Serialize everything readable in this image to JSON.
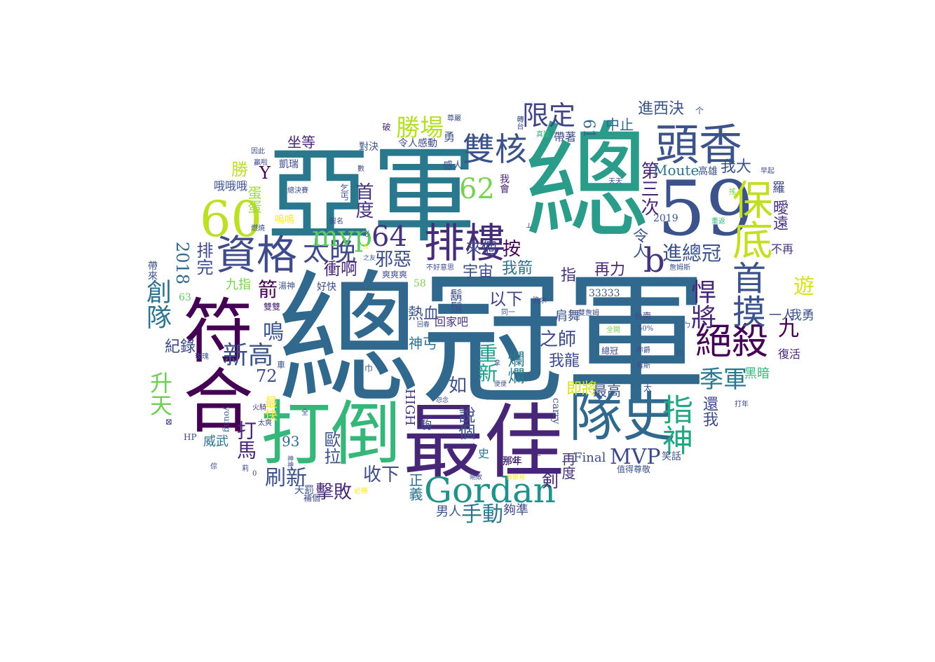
{
  "words": [
    {
      "text": "總冠軍",
      "color": "#31688e"
    },
    {
      "text": "總",
      "color": "#2a9c89"
    },
    {
      "text": "亞軍",
      "color": "#2a788e"
    },
    {
      "text": "59",
      "color": "#3b528b"
    },
    {
      "text": "最佳",
      "color": "#482677"
    },
    {
      "text": "打倒",
      "color": "#35b779"
    },
    {
      "text": "符合",
      "color": "#440154"
    },
    {
      "text": "隊史",
      "color": "#31688e"
    },
    {
      "text": "60",
      "color": "#bddf26"
    },
    {
      "text": "頭香",
      "color": "#3b528b"
    },
    {
      "text": "排樓",
      "color": "#472c7a"
    },
    {
      "text": "資格",
      "color": "#3e4a89"
    },
    {
      "text": "保底",
      "color": "#c2df23"
    },
    {
      "text": "Gordan",
      "color": "#21918c"
    },
    {
      "text": "絕殺",
      "color": "#440154"
    },
    {
      "text": "首摸",
      "color": "#3b528b"
    },
    {
      "text": "雙核",
      "color": "#3b528b"
    },
    {
      "text": "太晚",
      "color": "#3e4a89"
    },
    {
      "text": "64",
      "color": "#46337e"
    },
    {
      "text": "62",
      "color": "#7ad151"
    },
    {
      "text": "限定",
      "color": "#414487"
    },
    {
      "text": "勝場",
      "color": "#b5de2b"
    },
    {
      "text": "指神",
      "color": "#22a884"
    },
    {
      "text": "b",
      "color": "#46337e"
    },
    {
      "text": "mvp",
      "color": "#5ec962"
    },
    {
      "text": "MVP",
      "color": "#3e4a89"
    },
    {
      "text": "新高",
      "color": "#3b528b"
    },
    {
      "text": "悍將",
      "color": "#482677"
    },
    {
      "text": "季軍",
      "color": "#2a788e"
    },
    {
      "text": "創隊",
      "color": "#2c728e"
    },
    {
      "text": "進總冠",
      "color": "#3b528b"
    },
    {
      "text": "邪惡",
      "color": "#3e4a89"
    },
    {
      "text": "衝啊",
      "color": "#482677"
    },
    {
      "text": "刷新",
      "color": "#3b528b"
    },
    {
      "text": "擊敗",
      "color": "#482878"
    },
    {
      "text": "收下",
      "color": "#3e4a89"
    },
    {
      "text": "手動",
      "color": "#2a788e"
    },
    {
      "text": "重新",
      "color": "#1f9e89"
    },
    {
      "text": "升天",
      "color": "#6ece58"
    },
    {
      "text": "打馬",
      "color": "#482677"
    },
    {
      "text": "鳴",
      "color": "#3b528b"
    },
    {
      "text": "宇宙",
      "color": "#3e4a89"
    },
    {
      "text": "我箭",
      "color": "#2c728e"
    },
    {
      "text": "首度",
      "color": "#46337e"
    },
    {
      "text": "來個",
      "color": "#3e4a89"
    },
    {
      "text": "按",
      "color": "#440154"
    },
    {
      "text": "遊",
      "color": "#d8e219"
    },
    {
      "text": "九",
      "color": "#440154"
    },
    {
      "text": "進西決",
      "color": "#3b528b"
    },
    {
      "text": "中止",
      "color": "#31688e"
    },
    {
      "text": "61",
      "color": "#31688e"
    },
    {
      "text": "第三次",
      "color": "#482677"
    },
    {
      "text": "Moute",
      "color": "#2c728e"
    },
    {
      "text": "我大",
      "color": "#3b528b"
    },
    {
      "text": "曖遠",
      "color": "#46337e"
    },
    {
      "text": "令人",
      "color": "#3b528b"
    },
    {
      "text": "再力",
      "color": "#482677"
    },
    {
      "text": "指",
      "color": "#46337e"
    },
    {
      "text": "以下",
      "color": "#414487"
    },
    {
      "text": "熱血",
      "color": "#3b528b"
    },
    {
      "text": "爛爛",
      "color": "#2a788e"
    },
    {
      "text": "之師",
      "color": "#3e4a89"
    },
    {
      "text": "我龍",
      "color": "#3e4a89"
    },
    {
      "text": "即將",
      "color": "#d8e219"
    },
    {
      "text": "最高",
      "color": "#3b528b"
    },
    {
      "text": "坐等",
      "color": "#482677"
    },
    {
      "text": "勝",
      "color": "#bddf26"
    },
    {
      "text": "蛋蛋",
      "color": "#a0da39"
    },
    {
      "text": "Y",
      "color": "#440154"
    },
    {
      "text": "2018",
      "color": "#31688e"
    },
    {
      "text": "排完",
      "color": "#3e4a89"
    },
    {
      "text": "箭",
      "color": "#440154"
    },
    {
      "text": "九指",
      "color": "#7ad151"
    },
    {
      "text": "紀錄",
      "color": "#3e4a89"
    },
    {
      "text": "72",
      "color": "#3e4a89"
    },
    {
      "text": "最快",
      "color": "#fde725"
    },
    {
      "text": "93",
      "color": "#31688e"
    },
    {
      "text": "歐拉",
      "color": "#3b528b"
    },
    {
      "text": "威武",
      "color": "#2c728e"
    },
    {
      "text": "神丐",
      "color": "#2c728e"
    },
    {
      "text": "如",
      "color": "#3b528b"
    },
    {
      "text": "說個",
      "color": "#3b528b"
    },
    {
      "text": "HIGH",
      "color": "#46337e"
    },
    {
      "text": "正義",
      "color": "#2c728e"
    },
    {
      "text": "男人",
      "color": "#3b528b"
    },
    {
      "text": "夠準",
      "color": "#3e4a89"
    },
    {
      "text": "剣",
      "color": "#482677"
    },
    {
      "text": "再度",
      "color": "#46337e"
    },
    {
      "text": "Final",
      "color": "#3e4a89"
    },
    {
      "text": "肩舞",
      "color": "#3b528b"
    },
    {
      "text": "還我",
      "color": "#3e4a89"
    },
    {
      "text": "一人",
      "color": "#3e4a89"
    },
    {
      "text": "我勇",
      "color": "#3b528b"
    },
    {
      "text": "黑暗",
      "color": "#35b779"
    },
    {
      "text": "復活",
      "color": "#482677"
    },
    {
      "text": "不再",
      "color": "#46337e"
    },
    {
      "text": "羅",
      "color": "#3e4a89"
    },
    {
      "text": "高雄",
      "color": "#3b528b"
    },
    {
      "text": "哦哦哦",
      "color": "#3b528b"
    },
    {
      "text": "凱瑞",
      "color": "#3e4a89"
    },
    {
      "text": "對決",
      "color": "#3b528b"
    },
    {
      "text": "令人感動",
      "color": "#3e4a89"
    },
    {
      "text": "勇",
      "color": "#3b528b"
    },
    {
      "text": "感人",
      "color": "#3e4a89"
    },
    {
      "text": "我會",
      "color": "#482677"
    },
    {
      "text": "帶著",
      "color": "#3e4a89"
    },
    {
      "text": "鬍鬚",
      "color": "#3b528b"
    },
    {
      "text": "回家吧",
      "color": "#46337e"
    },
    {
      "text": "33333",
      "color": "#3b528b"
    },
    {
      "text": "58",
      "color": "#7ad151"
    },
    {
      "text": "63",
      "color": "#5ec962"
    },
    {
      "text": "好快",
      "color": "#3e4a89"
    },
    {
      "text": "雙雙",
      "color": "#482677"
    },
    {
      "text": "湯神",
      "color": "#3b528b"
    },
    {
      "text": "爽爽爽",
      "color": "#3e4a89"
    },
    {
      "text": "帶來",
      "color": "#3b528b"
    },
    {
      "text": "那年",
      "color": "#440154"
    },
    {
      "text": "史",
      "color": "#2c728e"
    },
    {
      "text": "笑話",
      "color": "#3b528b"
    },
    {
      "text": "值得尊敬",
      "color": "#3b528b"
    },
    {
      "text": "天罰",
      "color": "#3b528b"
    },
    {
      "text": "補個",
      "color": "#3e4a89"
    },
    {
      "text": "必勝",
      "color": "#fde725"
    },
    {
      "text": "火騎",
      "color": "#46337e"
    },
    {
      "text": "太爽",
      "color": "#3e4a89"
    },
    {
      "text": "玫瑰",
      "color": "#3b528b"
    },
    {
      "text": "HP",
      "color": "#3e4a89"
    },
    {
      "text": "carry",
      "color": "#3b528b"
    },
    {
      "text": "paul",
      "color": "#3b528b"
    },
    {
      "text": "young",
      "color": "#3b528b"
    },
    {
      "text": "2019",
      "color": "#3b528b"
    },
    {
      "text": "50%",
      "color": "#3b528b"
    },
    {
      "text": "台南",
      "color": "#3e4a89"
    },
    {
      "text": "總冠",
      "color": "#3e4a89"
    },
    {
      "text": "全開",
      "color": "#7ad151"
    },
    {
      "text": "詹姆斯",
      "color": "#3b528b"
    },
    {
      "text": "雙詹姆",
      "color": "#3b528b"
    },
    {
      "text": "羅斯",
      "color": "#3b528b"
    },
    {
      "text": "你爵",
      "color": "#3e4a89"
    },
    {
      "text": "尊嚴",
      "color": "#3e4a89"
    },
    {
      "text": "轉台",
      "color": "#3e4a89"
    },
    {
      "text": "真猛",
      "color": "#35b779"
    },
    {
      "text": "破",
      "color": "#482677"
    },
    {
      "text": "總決賽",
      "color": "#3e4a89"
    },
    {
      "text": "因此",
      "color": "#3e4a89"
    },
    {
      "text": "贏啦",
      "color": "#3e4a89"
    },
    {
      "text": "留名",
      "color": "#3e4a89"
    },
    {
      "text": "數",
      "color": "#3e4a89"
    },
    {
      "text": "乞丐",
      "color": "#3b528b"
    },
    {
      "text": "嗚嗚",
      "color": "#fde725"
    },
    {
      "text": "燃燒",
      "color": "#3b528b"
    },
    {
      "text": "之友",
      "color": "#3b528b"
    },
    {
      "text": "不好意思",
      "color": "#3e4a89"
    },
    {
      "text": "同一",
      "color": "#3b528b"
    },
    {
      "text": "跪求",
      "color": "#3e4a89"
    },
    {
      "text": "回春",
      "color": "#3e4a89"
    },
    {
      "text": "怨念",
      "color": "#3e4a89"
    },
    {
      "text": "便便",
      "color": "#3b528b"
    },
    {
      "text": "剛敗",
      "color": "#3e4a89"
    },
    {
      "text": "肖狼肖",
      "color": "#fde725"
    },
    {
      "text": "拿",
      "color": "#3e4a89"
    },
    {
      "text": "重返",
      "color": "#35b779"
    },
    {
      "text": "搖",
      "color": "#7ad151"
    },
    {
      "text": "天天",
      "color": "#3b528b"
    },
    {
      "text": "早起",
      "color": "#3e4a89"
    },
    {
      "text": "坑",
      "color": "#3b528b"
    },
    {
      "text": "打年",
      "color": "#3e4a89"
    },
    {
      "text": "駒",
      "color": "#3b528b"
    },
    {
      "text": "主",
      "color": "#482677"
    },
    {
      "text": "太",
      "color": "#3b528b"
    },
    {
      "text": "全",
      "color": "#3b528b"
    },
    {
      "text": "神神",
      "color": "#3e4a89"
    },
    {
      "text": "莉",
      "color": "#3e4a89"
    },
    {
      "text": "0",
      "color": "#3e4a89"
    },
    {
      "text": "倧",
      "color": "#3e4a89"
    },
    {
      "text": "必",
      "color": "#3e4a89"
    },
    {
      "text": "X",
      "color": "#fde725"
    },
    {
      "text": "巾",
      "color": "#3b528b"
    },
    {
      "text": "⊠",
      "color": "#3e4a89"
    },
    {
      "text": "車",
      "color": "#3b528b"
    },
    {
      "text": "⊥",
      "color": "#3e4a89"
    },
    {
      "text": "ㄅ",
      "color": "#3e4a89"
    },
    {
      "text": "个",
      "color": "#3b528b"
    }
  ]
}
